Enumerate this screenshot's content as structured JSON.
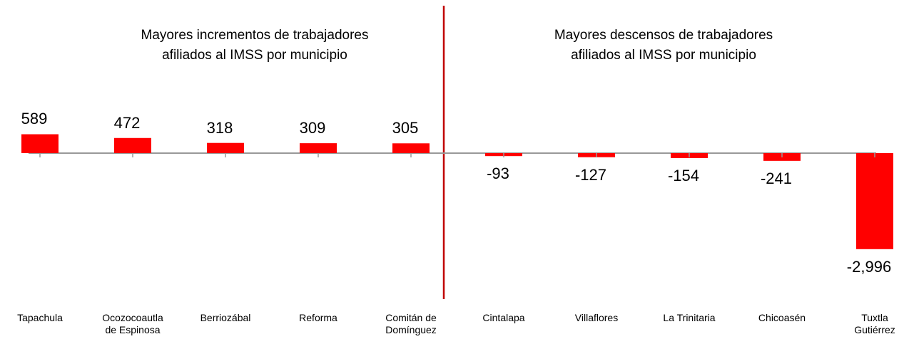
{
  "chart_data": {
    "type": "bar",
    "annotations": [
      "Mayores incrementos de trabajadores\nafiliados al IMSS por municipio",
      "Mayores descensos de trabajadores\nafiliados al IMSS por municipio"
    ],
    "categories": [
      "Tapachula",
      "Ocozocoautla\nde Espinosa",
      "Berriozábal",
      "Reforma",
      "Comitán de\nDomínguez",
      "Cintalapa",
      "Villaflores",
      "La Trinitaria",
      "Chicoasén",
      "Tuxtla\nGutiérrez"
    ],
    "values": [
      589,
      472,
      318,
      309,
      305,
      -93,
      -127,
      -154,
      -241,
      -2996
    ],
    "value_labels": [
      "589",
      "472",
      "318",
      "309",
      "305",
      "-93",
      "-127",
      "-154",
      "-241",
      "-2,996"
    ],
    "color": "#ff0000",
    "ylim": [
      -3400,
      800
    ]
  }
}
